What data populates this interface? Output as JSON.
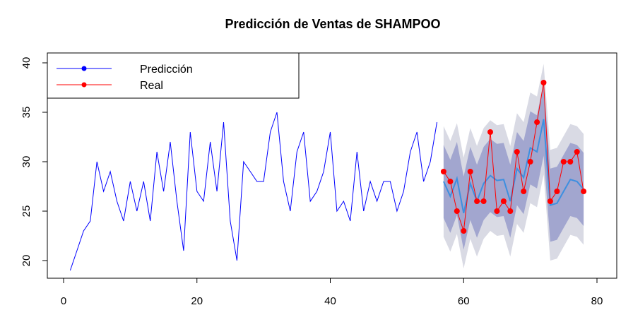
{
  "chart_data": {
    "type": "line",
    "title": "Predicción de Ventas de SHAMPOO",
    "xlabel": "",
    "ylabel": "",
    "xlim": [
      0,
      80
    ],
    "ylim": [
      18.5,
      40.5
    ],
    "xticks": [
      0,
      20,
      40,
      60,
      80
    ],
    "yticks": [
      20,
      25,
      30,
      35,
      40
    ],
    "grid": false,
    "legend_position": "top-left",
    "legend": [
      {
        "label": "Predicción",
        "color": "#0000ff",
        "marker": "dot"
      },
      {
        "label": "Real",
        "color": "#ff0000",
        "marker": "dot"
      }
    ],
    "history": {
      "color": "#0000ff",
      "x": [
        1,
        2,
        3,
        4,
        5,
        6,
        7,
        8,
        9,
        10,
        11,
        12,
        13,
        14,
        15,
        16,
        17,
        18,
        19,
        20,
        21,
        22,
        23,
        24,
        25,
        26,
        27,
        28,
        29,
        30,
        31,
        32,
        33,
        34,
        35,
        36,
        37,
        38,
        39,
        40,
        41,
        42,
        43,
        44,
        45,
        46,
        47,
        48,
        49,
        50,
        51,
        52,
        53,
        54,
        55,
        56
      ],
      "y": [
        19,
        21,
        23,
        24,
        30,
        27,
        29,
        26,
        24,
        28,
        25,
        28,
        24,
        31,
        27,
        32,
        26,
        21,
        33,
        27,
        26,
        32,
        27,
        34,
        24,
        20,
        30,
        29,
        28,
        28,
        33,
        35,
        28,
        25,
        31,
        33,
        26,
        27,
        29,
        33,
        25,
        26,
        24,
        31,
        25,
        28,
        26,
        28,
        28,
        25,
        27,
        31,
        33,
        28,
        30,
        34
      ]
    },
    "forecast": {
      "color": "#3d8fe0",
      "x": [
        57,
        58,
        59,
        60,
        61,
        62,
        63,
        64,
        65,
        66,
        67,
        68,
        69,
        70,
        71,
        72,
        73,
        74,
        75,
        76,
        77,
        78
      ],
      "mean": [
        28.0,
        26.5,
        28.3,
        24.8,
        27.8,
        26.0,
        27.8,
        28.6,
        28.1,
        28.2,
        26.0,
        29.3,
        28.4,
        31.4,
        31.0,
        34.3,
        25.6,
        25.8,
        27.0,
        28.2,
        28.0,
        27.2
      ],
      "lower80": [
        24.3,
        22.8,
        24.6,
        21.1,
        24.1,
        22.3,
        24.1,
        24.9,
        24.4,
        24.5,
        22.3,
        25.6,
        24.7,
        27.7,
        27.3,
        30.6,
        21.9,
        22.1,
        23.3,
        24.5,
        24.3,
        23.5
      ],
      "upper80": [
        31.7,
        30.2,
        32.0,
        28.5,
        31.5,
        29.7,
        31.5,
        32.3,
        31.8,
        31.9,
        29.7,
        33.0,
        32.1,
        35.1,
        34.7,
        38.0,
        29.3,
        29.5,
        30.7,
        31.9,
        31.7,
        30.9
      ],
      "lower95": [
        22.4,
        20.9,
        22.7,
        19.2,
        22.2,
        20.4,
        22.2,
        23.0,
        22.5,
        22.6,
        20.4,
        23.7,
        22.8,
        25.8,
        25.4,
        28.7,
        20.0,
        20.2,
        21.4,
        22.6,
        22.4,
        21.6
      ],
      "upper95": [
        33.6,
        32.1,
        33.9,
        30.4,
        33.4,
        31.6,
        33.4,
        34.2,
        33.7,
        33.8,
        31.6,
        34.9,
        34.0,
        37.0,
        36.6,
        39.9,
        31.2,
        31.4,
        32.6,
        33.8,
        33.6,
        32.8
      ],
      "band80_color": "#a2a6cf",
      "band95_color": "#d9dae4"
    },
    "actual": {
      "color": "#ff0000",
      "x": [
        57,
        58,
        59,
        60,
        61,
        62,
        63,
        64,
        65,
        66,
        67,
        68,
        69,
        70,
        71,
        72,
        73,
        74,
        75,
        76,
        77,
        78
      ],
      "y": [
        29,
        28,
        25,
        23,
        29,
        26,
        26,
        33,
        25,
        26,
        25,
        31,
        27,
        30,
        34,
        38,
        26,
        27,
        30,
        30,
        31,
        27
      ]
    }
  }
}
